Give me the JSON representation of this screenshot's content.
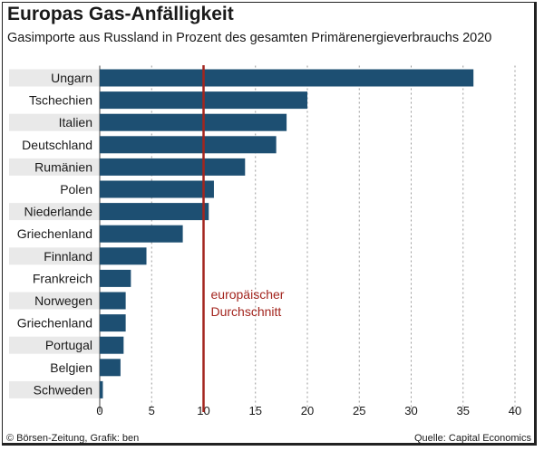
{
  "header": {
    "title": "Europas Gas-Anfälligkeit",
    "subtitle": "Gasimporte aus Russland in Prozent des gesamten Primärenergieverbrauchs 2020"
  },
  "footer": {
    "credit": "© Börsen-Zeitung, Grafik: ben",
    "source": "Quelle: Capital Economics"
  },
  "colors": {
    "bar": "#1d4f72",
    "band": "#e9e9e9",
    "reference": "#a3251e",
    "grid": "#9a9a9a"
  },
  "chart_data": {
    "type": "bar",
    "orientation": "horizontal",
    "title": "Europas Gas-Anfälligkeit",
    "subtitle": "Gasimporte aus Russland in Prozent des gesamten Primärenergieverbrauchs 2020",
    "categories": [
      "Ungarn",
      "Tschechien",
      "Italien",
      "Deutschland",
      "Rumänien",
      "Polen",
      "Niederlande",
      "Griechenland",
      "Finnland",
      "Frankreich",
      "Norwegen",
      "Griechenland",
      "Portugal",
      "Belgien",
      "Schweden"
    ],
    "values": [
      36,
      20,
      18,
      17,
      14,
      11,
      10.5,
      8,
      4.5,
      3,
      2.5,
      2.5,
      2.3,
      2,
      0.3
    ],
    "xlim": [
      0,
      40
    ],
    "xticks": [
      0,
      5,
      10,
      15,
      20,
      25,
      30,
      35,
      40
    ],
    "grid": "vertical dashed",
    "reference_line": {
      "value": 10,
      "label_line1": "europäischer",
      "label_line2": "Durchschnitt"
    }
  }
}
